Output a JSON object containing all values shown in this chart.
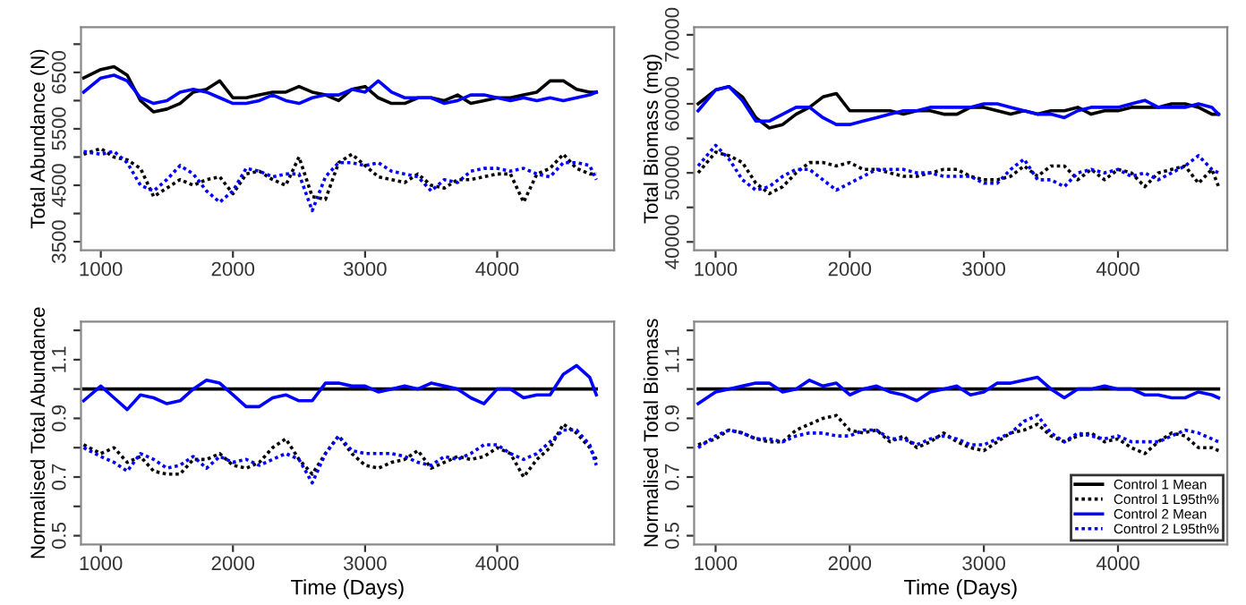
{
  "chart_data": [
    {
      "type": "line",
      "ylabel": "Total Abundance (N)",
      "xlim": [
        850,
        4885
      ],
      "xticks": [
        1000,
        2000,
        3000,
        4000
      ],
      "ylim": [
        3350,
        7300
      ],
      "yticks": [
        3500,
        {
          "value": 4000,
          "label": null
        },
        4500,
        {
          "value": 5000,
          "label": null
        },
        5500,
        {
          "value": 6000,
          "label": null
        },
        6500,
        {
          "value": 7000,
          "label": null
        }
      ],
      "grid": false,
      "legend": false,
      "x": [
        870,
        1000,
        1100,
        1200,
        1300,
        1400,
        1500,
        1600,
        1700,
        1800,
        1900,
        2000,
        2100,
        2200,
        2300,
        2400,
        2500,
        2600,
        2700,
        2800,
        2900,
        3000,
        3100,
        3200,
        3300,
        3400,
        3500,
        3600,
        3700,
        3800,
        3900,
        4000,
        4100,
        4200,
        4300,
        4400,
        4500,
        4600,
        4700,
        4750
      ],
      "series": [
        {
          "color": "#000000",
          "line_style": "solid",
          "values": [
            6400,
            6550,
            6600,
            6450,
            6000,
            5800,
            5850,
            5950,
            6150,
            6200,
            6350,
            6050,
            6050,
            6100,
            6150,
            6150,
            6250,
            6150,
            6100,
            6000,
            6200,
            6250,
            6050,
            5950,
            5950,
            6050,
            6050,
            6000,
            6100,
            5950,
            6000,
            6050,
            6050,
            6100,
            6150,
            6350,
            6350,
            6200,
            6150,
            6150
          ]
        },
        {
          "color": "#000000",
          "line_style": "dotted",
          "values": [
            5050,
            5150,
            5000,
            4950,
            4800,
            4300,
            4450,
            4600,
            4500,
            4600,
            4650,
            4350,
            4700,
            4750,
            4600,
            4500,
            5000,
            4300,
            4250,
            4900,
            5050,
            4850,
            4650,
            4600,
            4550,
            4700,
            4500,
            4450,
            4600,
            4600,
            4650,
            4700,
            4700,
            4200,
            4700,
            4800,
            5050,
            4800,
            4700,
            4700
          ]
        },
        {
          "color": "#0000ff",
          "line_style": "solid",
          "values": [
            6150,
            6400,
            6450,
            6350,
            6050,
            5950,
            6000,
            6150,
            6200,
            6150,
            6050,
            5950,
            5950,
            6000,
            6100,
            6000,
            5950,
            6050,
            6100,
            6100,
            6200,
            6150,
            6350,
            6150,
            6050,
            6050,
            6050,
            5950,
            6000,
            6100,
            6100,
            6050,
            6000,
            6050,
            6000,
            6050,
            6000,
            6050,
            6100,
            6150
          ]
        },
        {
          "color": "#0000ff",
          "line_style": "dotted",
          "values": [
            5100,
            5050,
            5100,
            4900,
            4500,
            4400,
            4600,
            4850,
            4700,
            4400,
            4200,
            4400,
            4800,
            4750,
            4650,
            4700,
            4700,
            4050,
            4650,
            4900,
            4900,
            4850,
            4900,
            4750,
            4700,
            4650,
            4400,
            4600,
            4550,
            4750,
            4800,
            4800,
            4750,
            4800,
            4700,
            4650,
            4900,
            4900,
            4850,
            4600
          ]
        }
      ]
    },
    {
      "type": "line",
      "ylabel": "Total Biomass (mg)",
      "xlim": [
        840,
        4815
      ],
      "xticks": [
        1000,
        2000,
        3000,
        4000
      ],
      "ylim": [
        38800,
        71100
      ],
      "yticks": [
        40000,
        {
          "value": 45000,
          "label": null
        },
        50000,
        {
          "value": 55000,
          "label": null
        },
        60000,
        {
          "value": 65000,
          "label": null
        },
        70000
      ],
      "grid": false,
      "legend": false,
      "x": [
        870,
        1000,
        1100,
        1200,
        1300,
        1400,
        1500,
        1600,
        1700,
        1800,
        1900,
        2000,
        2100,
        2200,
        2300,
        2400,
        2500,
        2600,
        2700,
        2800,
        2900,
        3000,
        3100,
        3200,
        3300,
        3400,
        3500,
        3600,
        3700,
        3800,
        3900,
        4000,
        4100,
        4200,
        4300,
        4400,
        4500,
        4600,
        4700,
        4750
      ],
      "series": [
        {
          "color": "#000000",
          "line_style": "solid",
          "values": [
            60000,
            62000,
            62500,
            61000,
            58000,
            56500,
            57000,
            58500,
            59500,
            61000,
            61500,
            59000,
            59000,
            59000,
            59000,
            58500,
            59000,
            59000,
            58500,
            58500,
            59500,
            59500,
            59000,
            58500,
            59000,
            58500,
            59000,
            59000,
            59500,
            58500,
            59000,
            59000,
            59500,
            59500,
            59500,
            60000,
            60000,
            59500,
            58500,
            58500
          ]
        },
        {
          "color": "#000000",
          "line_style": "dotted",
          "values": [
            50000,
            53000,
            52500,
            51500,
            48500,
            47000,
            48000,
            50000,
            51500,
            51500,
            51000,
            51500,
            50500,
            50500,
            50000,
            49500,
            49500,
            50000,
            50500,
            50500,
            49500,
            49000,
            49000,
            49500,
            51000,
            49500,
            51000,
            51000,
            49000,
            50500,
            49000,
            50500,
            50000,
            48000,
            50000,
            50500,
            51000,
            48500,
            50500,
            48000
          ]
        },
        {
          "color": "#0000ff",
          "line_style": "solid",
          "values": [
            59000,
            62000,
            62500,
            60500,
            57500,
            57500,
            58500,
            59500,
            59500,
            58000,
            57000,
            57000,
            57500,
            58000,
            58500,
            59000,
            59000,
            59500,
            59500,
            59500,
            59500,
            60000,
            60000,
            59500,
            59000,
            58500,
            58500,
            58000,
            59000,
            59500,
            59500,
            59500,
            60000,
            60500,
            59500,
            59500,
            59500,
            60000,
            59500,
            58500
          ]
        },
        {
          "color": "#0000ff",
          "line_style": "dotted",
          "values": [
            51000,
            54000,
            52000,
            49000,
            47500,
            48000,
            49500,
            50500,
            50500,
            49000,
            47500,
            48500,
            49500,
            50500,
            50500,
            50500,
            50000,
            50000,
            49500,
            49500,
            49500,
            48500,
            48500,
            50500,
            52000,
            49000,
            49000,
            48000,
            50000,
            50500,
            50000,
            50500,
            49500,
            50000,
            49000,
            50000,
            51000,
            52500,
            50500,
            50000
          ]
        }
      ]
    },
    {
      "type": "line",
      "xlabel": "Time (Days)",
      "ylabel": "Normalised Total Abundance",
      "xlim": [
        850,
        4885
      ],
      "xticks": [
        1000,
        2000,
        3000,
        4000
      ],
      "ylim": [
        0.47,
        1.23
      ],
      "yticks": [
        0.5,
        {
          "value": 0.6,
          "label": null
        },
        0.7,
        {
          "value": 0.8,
          "label": null
        },
        0.9,
        {
          "value": 1.0,
          "label": null
        },
        1.1,
        {
          "value": 1.2,
          "label": null
        }
      ],
      "grid": false,
      "legend": false,
      "x": [
        870,
        1000,
        1100,
        1200,
        1300,
        1400,
        1500,
        1600,
        1700,
        1800,
        1900,
        2000,
        2100,
        2200,
        2300,
        2400,
        2500,
        2600,
        2700,
        2800,
        2900,
        3000,
        3100,
        3200,
        3300,
        3400,
        3500,
        3600,
        3700,
        3800,
        3900,
        4000,
        4100,
        4200,
        4300,
        4400,
        4500,
        4600,
        4700,
        4750
      ],
      "series": [
        {
          "color": "#000000",
          "line_style": "solid",
          "values": [
            1.0,
            1.0,
            1.0,
            1.0,
            1.0,
            1.0,
            1.0,
            1.0,
            1.0,
            1.0,
            1.0,
            1.0,
            1.0,
            1.0,
            1.0,
            1.0,
            1.0,
            1.0,
            1.0,
            1.0,
            1.0,
            1.0,
            1.0,
            1.0,
            1.0,
            1.0,
            1.0,
            1.0,
            1.0,
            1.0,
            1.0,
            1.0,
            1.0,
            1.0,
            1.0,
            1.0,
            1.0,
            1.0,
            1.0,
            1.0
          ]
        },
        {
          "color": "#000000",
          "line_style": "dotted",
          "values": [
            0.81,
            0.78,
            0.8,
            0.75,
            0.77,
            0.72,
            0.71,
            0.71,
            0.76,
            0.76,
            0.78,
            0.74,
            0.73,
            0.75,
            0.8,
            0.83,
            0.76,
            0.71,
            0.78,
            0.84,
            0.78,
            0.74,
            0.73,
            0.75,
            0.76,
            0.79,
            0.73,
            0.75,
            0.77,
            0.76,
            0.77,
            0.8,
            0.78,
            0.7,
            0.76,
            0.8,
            0.88,
            0.85,
            0.8,
            0.76
          ]
        },
        {
          "color": "#0000ff",
          "line_style": "solid",
          "values": [
            0.96,
            1.01,
            0.97,
            0.93,
            0.98,
            0.97,
            0.95,
            0.96,
            1.0,
            1.03,
            1.02,
            0.98,
            0.94,
            0.94,
            0.97,
            0.98,
            0.96,
            0.96,
            1.02,
            1.02,
            1.01,
            1.01,
            0.99,
            1.0,
            1.01,
            1.0,
            1.02,
            1.01,
            1.0,
            0.97,
            0.95,
            1.0,
            1.0,
            0.97,
            0.98,
            0.98,
            1.05,
            1.08,
            1.04,
            0.98
          ]
        },
        {
          "color": "#0000ff",
          "line_style": "dotted",
          "values": [
            0.8,
            0.77,
            0.75,
            0.72,
            0.78,
            0.76,
            0.73,
            0.74,
            0.77,
            0.73,
            0.77,
            0.75,
            0.76,
            0.74,
            0.76,
            0.78,
            0.76,
            0.68,
            0.78,
            0.84,
            0.79,
            0.78,
            0.78,
            0.78,
            0.77,
            0.75,
            0.74,
            0.77,
            0.76,
            0.78,
            0.81,
            0.81,
            0.78,
            0.76,
            0.78,
            0.82,
            0.86,
            0.86,
            0.81,
            0.74
          ]
        }
      ]
    },
    {
      "type": "line",
      "xlabel": "Time (Days)",
      "ylabel": "Normalised Total Biomass",
      "xlim": [
        840,
        4815
      ],
      "xticks": [
        1000,
        2000,
        3000,
        4000
      ],
      "ylim": [
        0.47,
        1.23
      ],
      "yticks": [
        0.5,
        {
          "value": 0.6,
          "label": null
        },
        0.7,
        {
          "value": 0.8,
          "label": null
        },
        0.9,
        {
          "value": 1.0,
          "label": null
        },
        1.1,
        {
          "value": 1.2,
          "label": null
        }
      ],
      "grid": false,
      "legend": "bottom right",
      "x": [
        870,
        1000,
        1100,
        1200,
        1300,
        1400,
        1500,
        1600,
        1700,
        1800,
        1900,
        2000,
        2100,
        2200,
        2300,
        2400,
        2500,
        2600,
        2700,
        2800,
        2900,
        3000,
        3100,
        3200,
        3300,
        3400,
        3500,
        3600,
        3700,
        3800,
        3900,
        4000,
        4100,
        4200,
        4300,
        4400,
        4500,
        4600,
        4700,
        4750
      ],
      "series": [
        {
          "name": "Control 1 Mean",
          "color": "#000000",
          "line_style": "solid",
          "values": [
            1.0,
            1.0,
            1.0,
            1.0,
            1.0,
            1.0,
            1.0,
            1.0,
            1.0,
            1.0,
            1.0,
            1.0,
            1.0,
            1.0,
            1.0,
            1.0,
            1.0,
            1.0,
            1.0,
            1.0,
            1.0,
            1.0,
            1.0,
            1.0,
            1.0,
            1.0,
            1.0,
            1.0,
            1.0,
            1.0,
            1.0,
            1.0,
            1.0,
            1.0,
            1.0,
            1.0,
            1.0,
            1.0,
            1.0,
            1.0
          ]
        },
        {
          "name": "Control 1 L95th%",
          "color": "#000000",
          "line_style": "dotted",
          "values": [
            0.81,
            0.83,
            0.86,
            0.85,
            0.83,
            0.82,
            0.82,
            0.86,
            0.88,
            0.9,
            0.91,
            0.86,
            0.85,
            0.86,
            0.82,
            0.84,
            0.8,
            0.82,
            0.85,
            0.82,
            0.8,
            0.79,
            0.82,
            0.85,
            0.86,
            0.88,
            0.84,
            0.82,
            0.84,
            0.85,
            0.82,
            0.83,
            0.8,
            0.78,
            0.82,
            0.85,
            0.84,
            0.8,
            0.8,
            0.79
          ]
        },
        {
          "name": "Control 2 Mean",
          "color": "#0000ff",
          "line_style": "solid",
          "values": [
            0.95,
            0.99,
            1.0,
            1.01,
            1.02,
            1.02,
            0.99,
            1.0,
            1.03,
            1.01,
            1.02,
            0.98,
            1.0,
            1.01,
            0.99,
            0.98,
            0.96,
            0.99,
            1.0,
            1.01,
            0.98,
            0.99,
            1.02,
            1.02,
            1.03,
            1.04,
            1.0,
            0.97,
            1.0,
            1.0,
            1.01,
            1.0,
            1.0,
            0.98,
            0.98,
            0.97,
            0.97,
            0.99,
            0.98,
            0.97
          ]
        },
        {
          "name": "Control 2 L95th%",
          "color": "#0000ff",
          "line_style": "dotted",
          "values": [
            0.8,
            0.84,
            0.86,
            0.85,
            0.83,
            0.83,
            0.82,
            0.84,
            0.85,
            0.85,
            0.84,
            0.84,
            0.86,
            0.86,
            0.83,
            0.83,
            0.81,
            0.83,
            0.84,
            0.83,
            0.81,
            0.81,
            0.83,
            0.85,
            0.89,
            0.91,
            0.85,
            0.82,
            0.85,
            0.84,
            0.83,
            0.84,
            0.82,
            0.82,
            0.82,
            0.84,
            0.86,
            0.85,
            0.83,
            0.82
          ]
        }
      ]
    }
  ]
}
